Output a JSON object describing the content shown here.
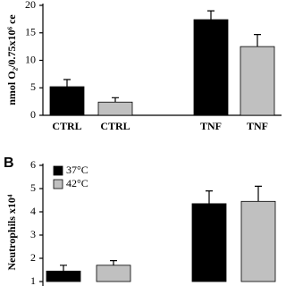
{
  "chart_data": [
    {
      "type": "bar",
      "y_label": "nmol O₂/0.75x10⁶ ce",
      "categories": [
        "CTRL",
        "CTRL",
        "TNF",
        "TNF"
      ],
      "values": [
        5.2,
        2.4,
        17.4,
        12.5
      ],
      "errors": [
        1.3,
        0.8,
        1.6,
        2.2
      ],
      "colors": [
        "#000000",
        "#c0c0c0",
        "#000000",
        "#c0c0c0"
      ],
      "ylim": [
        0,
        20
      ],
      "yticks": [
        0,
        5,
        10,
        15,
        20
      ]
    },
    {
      "type": "bar",
      "panel": "B",
      "y_label": "Neutrophils x10⁴",
      "categories": [
        null,
        null
      ],
      "series": [
        {
          "name": "37°C",
          "color": "#000000",
          "values": [
            1.45,
            4.35
          ],
          "errors": [
            0.25,
            0.55
          ]
        },
        {
          "name": "42°C",
          "color": "#c0c0c0",
          "values": [
            1.7,
            4.45
          ],
          "errors": [
            0.2,
            0.65
          ]
        }
      ],
      "ylim": [
        1,
        6
      ],
      "yticks": [
        1,
        2,
        3,
        4,
        5,
        6
      ]
    }
  ]
}
